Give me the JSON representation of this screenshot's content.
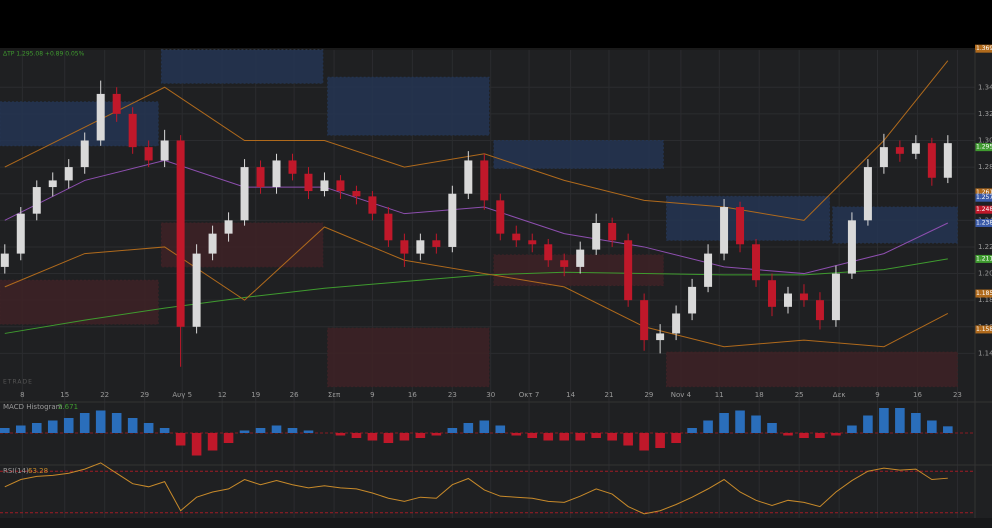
{
  "chart_data": [
    {
      "type": "candlestick",
      "header": "ΔTP 1,295.08 +0.89 0.05%",
      "watermark": "ETRADE",
      "up_color": "#d9d9d9",
      "down_color": "#c0182a",
      "xlim": [
        -0.3,
        60.7
      ],
      "ylim": [
        1.114,
        1.368
      ],
      "yticks": [
        1.14,
        1.16,
        1.18,
        {
          "value": 1.2,
          "label": "1.20"
        },
        1.22,
        1.24,
        1.26,
        1.28,
        {
          "value": 1.3,
          "label": "1.30"
        },
        1.32,
        1.34
      ],
      "xticks": [
        {
          "value": 1.1,
          "label": "8"
        },
        {
          "value": 3.75,
          "label": "15"
        },
        {
          "value": 6.25,
          "label": "22"
        },
        {
          "value": 8.75,
          "label": "29"
        },
        {
          "value": 11.1,
          "label": "Αυγ 5"
        },
        {
          "value": 13.6,
          "label": "12"
        },
        {
          "value": 15.7,
          "label": "19"
        },
        {
          "value": 18.1,
          "label": "26"
        },
        {
          "value": 20.6,
          "label": "Σεπ"
        },
        {
          "value": 23,
          "label": "9"
        },
        {
          "value": 25.5,
          "label": "16"
        },
        {
          "value": 28,
          "label": "23"
        },
        {
          "value": 30.4,
          "label": "30"
        },
        {
          "value": 32.8,
          "label": "Οκτ 7"
        },
        {
          "value": 35.4,
          "label": "14"
        },
        {
          "value": 37.8,
          "label": "21"
        },
        {
          "value": 40.3,
          "label": "29"
        },
        {
          "value": 42.3,
          "label": "Nov 4"
        },
        {
          "value": 44.7,
          "label": "11"
        },
        {
          "value": 47.2,
          "label": "18"
        },
        {
          "value": 49.7,
          "label": "25"
        },
        {
          "value": 52.2,
          "label": "Δεκ"
        },
        {
          "value": 54.6,
          "label": "9"
        },
        {
          "value": 57.1,
          "label": "16"
        },
        {
          "value": 59.6,
          "label": "23"
        }
      ],
      "zones": [
        {
          "color": "#243552",
          "x": [
            -0.3,
            9.6
          ],
          "y": [
            1.296,
            1.329
          ]
        },
        {
          "color": "#243552",
          "x": [
            9.8,
            19.9
          ],
          "y": [
            1.343,
            1.368
          ]
        },
        {
          "color": "#243552",
          "x": [
            20.2,
            30.3
          ],
          "y": [
            1.304,
            1.3475
          ]
        },
        {
          "color": "#243552",
          "x": [
            30.6,
            41.2
          ],
          "y": [
            1.279,
            1.3
          ]
        },
        {
          "color": "#243552",
          "x": [
            41.4,
            51.6
          ],
          "y": [
            1.225,
            1.258
          ]
        },
        {
          "color": "#243552",
          "x": [
            51.8,
            59.6
          ],
          "y": [
            1.223,
            1.25
          ]
        },
        {
          "color": "#3e2226",
          "x": [
            -0.3,
            9.6
          ],
          "y": [
            1.162,
            1.195
          ]
        },
        {
          "color": "#3e2226",
          "x": [
            9.8,
            19.9
          ],
          "y": [
            1.205,
            1.238
          ]
        },
        {
          "color": "#3e2226",
          "x": [
            20.2,
            30.3
          ],
          "y": [
            1.115,
            1.159
          ]
        },
        {
          "color": "#3e2226",
          "x": [
            30.6,
            41.2
          ],
          "y": [
            1.191,
            1.214
          ]
        },
        {
          "color": "#3e2226",
          "x": [
            41.4,
            59.6
          ],
          "y": [
            1.115,
            1.141
          ]
        }
      ],
      "line_x": [
        0,
        5,
        10,
        15,
        20,
        25,
        30,
        35,
        40,
        45,
        50,
        55,
        59
      ],
      "lines": [
        {
          "color": "#3f9b2f",
          "values": [
            1.155,
            1.165,
            1.174,
            1.182,
            1.189,
            1.194,
            1.199,
            1.201,
            1.2,
            1.199,
            1.199,
            1.203,
            1.211
          ]
        },
        {
          "color": "#8e4fb0",
          "values": [
            1.24,
            1.27,
            1.285,
            1.265,
            1.265,
            1.245,
            1.25,
            1.23,
            1.22,
            1.205,
            1.2,
            1.215,
            1.238
          ]
        },
        {
          "color": "#b06a1c",
          "values": [
            1.28,
            1.31,
            1.34,
            1.3,
            1.3,
            1.28,
            1.29,
            1.27,
            1.255,
            1.25,
            1.24,
            1.3,
            1.36
          ]
        },
        {
          "color": "#b06a1c",
          "values": [
            1.19,
            1.215,
            1.22,
            1.18,
            1.235,
            1.21,
            1.2,
            1.19,
            1.16,
            1.145,
            1.15,
            1.145,
            1.17
          ]
        }
      ],
      "price_badges": [
        {
          "value": 1.369,
          "color": "#b06a1c"
        },
        {
          "value": 1.295,
          "color": "#3f9b2f"
        },
        {
          "value": 1.261,
          "color": "#b06a1c"
        },
        {
          "value": 1.257,
          "color": "#3a5aa8"
        },
        {
          "value": 1.248,
          "color": "#c0182a"
        },
        {
          "value": 1.238,
          "color": "#3a5aa8"
        },
        {
          "value": 1.211,
          "color": "#3f9b2f"
        },
        {
          "value": 1.185,
          "color": "#b06a1c"
        },
        {
          "value": 1.158,
          "color": "#b06a1c"
        }
      ],
      "candles": [
        [
          1.205,
          1.222,
          1.2,
          1.215
        ],
        [
          1.215,
          1.25,
          1.21,
          1.245
        ],
        [
          1.245,
          1.27,
          1.24,
          1.265
        ],
        [
          1.265,
          1.276,
          1.258,
          1.27
        ],
        [
          1.27,
          1.286,
          1.264,
          1.28
        ],
        [
          1.28,
          1.306,
          1.275,
          1.3
        ],
        [
          1.3,
          1.345,
          1.296,
          1.335
        ],
        [
          1.335,
          1.34,
          1.314,
          1.32
        ],
        [
          1.32,
          1.325,
          1.29,
          1.295
        ],
        [
          1.295,
          1.3,
          1.28,
          1.285
        ],
        [
          1.285,
          1.308,
          1.28,
          1.3
        ],
        [
          1.3,
          1.304,
          1.13,
          1.16
        ],
        [
          1.16,
          1.222,
          1.155,
          1.215
        ],
        [
          1.215,
          1.236,
          1.21,
          1.23
        ],
        [
          1.23,
          1.246,
          1.224,
          1.24
        ],
        [
          1.24,
          1.286,
          1.236,
          1.28
        ],
        [
          1.28,
          1.285,
          1.26,
          1.265
        ],
        [
          1.265,
          1.29,
          1.26,
          1.285
        ],
        [
          1.285,
          1.29,
          1.27,
          1.275
        ],
        [
          1.275,
          1.28,
          1.256,
          1.262
        ],
        [
          1.262,
          1.276,
          1.258,
          1.27
        ],
        [
          1.27,
          1.274,
          1.256,
          1.262
        ],
        [
          1.262,
          1.266,
          1.252,
          1.258
        ],
        [
          1.258,
          1.262,
          1.24,
          1.245
        ],
        [
          1.245,
          1.25,
          1.22,
          1.225
        ],
        [
          1.225,
          1.23,
          1.205,
          1.215
        ],
        [
          1.215,
          1.23,
          1.21,
          1.225
        ],
        [
          1.225,
          1.23,
          1.215,
          1.22
        ],
        [
          1.22,
          1.266,
          1.216,
          1.26
        ],
        [
          1.26,
          1.292,
          1.256,
          1.285
        ],
        [
          1.285,
          1.29,
          1.248,
          1.255
        ],
        [
          1.255,
          1.26,
          1.225,
          1.23
        ],
        [
          1.23,
          1.236,
          1.22,
          1.225
        ],
        [
          1.225,
          1.23,
          1.216,
          1.222
        ],
        [
          1.222,
          1.226,
          1.205,
          1.21
        ],
        [
          1.21,
          1.215,
          1.198,
          1.205
        ],
        [
          1.205,
          1.224,
          1.2,
          1.218
        ],
        [
          1.218,
          1.245,
          1.214,
          1.238
        ],
        [
          1.238,
          1.242,
          1.22,
          1.225
        ],
        [
          1.225,
          1.23,
          1.175,
          1.18
        ],
        [
          1.18,
          1.185,
          1.142,
          1.15
        ],
        [
          1.15,
          1.162,
          1.14,
          1.155
        ],
        [
          1.155,
          1.176,
          1.15,
          1.17
        ],
        [
          1.17,
          1.196,
          1.165,
          1.19
        ],
        [
          1.19,
          1.222,
          1.186,
          1.215
        ],
        [
          1.215,
          1.256,
          1.21,
          1.25
        ],
        [
          1.25,
          1.254,
          1.216,
          1.222
        ],
        [
          1.222,
          1.226,
          1.19,
          1.195
        ],
        [
          1.195,
          1.2,
          1.168,
          1.175
        ],
        [
          1.175,
          1.19,
          1.17,
          1.185
        ],
        [
          1.185,
          1.192,
          1.175,
          1.18
        ],
        [
          1.18,
          1.186,
          1.158,
          1.165
        ],
        [
          1.165,
          1.206,
          1.16,
          1.2
        ],
        [
          1.2,
          1.246,
          1.196,
          1.24
        ],
        [
          1.24,
          1.286,
          1.236,
          1.28
        ],
        [
          1.28,
          1.305,
          1.275,
          1.295
        ],
        [
          1.295,
          1.3,
          1.284,
          1.29
        ],
        [
          1.29,
          1.304,
          1.286,
          1.298
        ],
        [
          1.298,
          1.302,
          1.266,
          1.272
        ],
        [
          1.272,
          1.304,
          1.268,
          1.298
        ]
      ]
    },
    {
      "type": "bar",
      "title": "MACD Histogram",
      "xlim": [
        -0.3,
        60.7
      ],
      "ylim": [
        -12,
        12
      ],
      "pos_color": "#2a6ebb",
      "neg_color": "#c0182a",
      "values": [
        2,
        3,
        4,
        5,
        6,
        8,
        9,
        8,
        6,
        4,
        2,
        -5,
        -9,
        -7,
        -4,
        1,
        2,
        3,
        2,
        1,
        0,
        -1,
        -2,
        -3,
        -4,
        -3,
        -2,
        -1,
        2,
        4,
        5,
        3,
        -1,
        -2,
        -3,
        -3,
        -3,
        -2,
        -3,
        -5,
        -7,
        -6,
        -4,
        2,
        5,
        8,
        9,
        7,
        4,
        -1,
        -2,
        -2,
        -1,
        3,
        7,
        10,
        10,
        8,
        5,
        2.671
      ]
    },
    {
      "type": "line",
      "title": "RSI(14)",
      "xlim": [
        -0.3,
        60.7
      ],
      "ylim": [
        25,
        75
      ],
      "color": "#c88a2a",
      "levels": [
        70,
        30
      ],
      "level_color": "#a01a24",
      "values": [
        55,
        62,
        65,
        66,
        68,
        72,
        78,
        68,
        58,
        55,
        60,
        32,
        45,
        50,
        53,
        62,
        57,
        61,
        57,
        54,
        56,
        54,
        53,
        49,
        44,
        41,
        45,
        44,
        57,
        63,
        52,
        46,
        45,
        44,
        41,
        40,
        46,
        53,
        48,
        36,
        29,
        32,
        38,
        45,
        53,
        62,
        50,
        42,
        37,
        42,
        40,
        36,
        50,
        61,
        70,
        73,
        71,
        72,
        62,
        63.28
      ]
    }
  ]
}
